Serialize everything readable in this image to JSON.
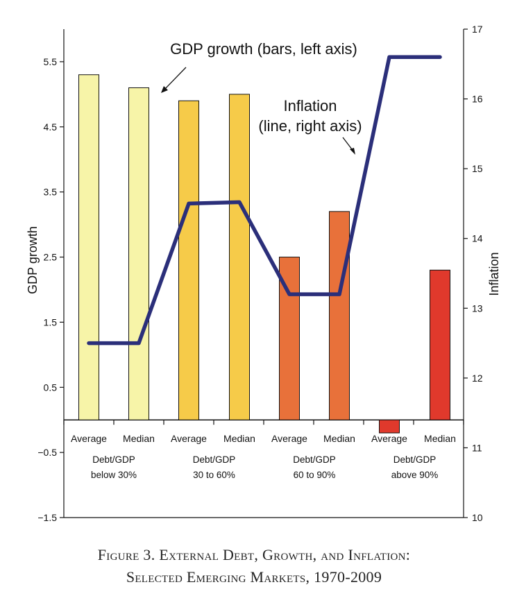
{
  "chart_data": {
    "type": "bar",
    "categories": [
      "Average",
      "Median",
      "Average",
      "Median",
      "Average",
      "Median",
      "Average",
      "Median"
    ],
    "groups": [
      {
        "label": [
          "Debt/GDP",
          "below 30%"
        ],
        "color": "#f7f4a8"
      },
      {
        "label": [
          "Debt/GDP",
          "30 to 60%"
        ],
        "color": "#f6cb49"
      },
      {
        "label": [
          "Debt/GDP",
          "60 to 90%"
        ],
        "color": "#e8713a"
      },
      {
        "label": [
          "Debt/GDP",
          "above 90%"
        ],
        "color": "#e0392c"
      }
    ],
    "series": [
      {
        "name": "GDP growth",
        "kind": "bar",
        "axis": "left",
        "values": [
          5.3,
          5.1,
          4.9,
          5.0,
          2.5,
          3.2,
          -0.2,
          2.3
        ]
      },
      {
        "name": "Inflation",
        "kind": "line",
        "axis": "right",
        "color": "#2b2f7a",
        "values": [
          12.5,
          12.5,
          14.5,
          14.52,
          13.2,
          13.2,
          16.6,
          16.6
        ]
      }
    ],
    "ylabel": "GDP growth",
    "y2label": "Inflation",
    "ylim": [
      -1.5,
      6.0
    ],
    "y2lim": [
      10,
      17
    ],
    "yticks": [
      -1.5,
      -0.5,
      0.5,
      1.5,
      2.5,
      3.5,
      4.5,
      5.5
    ],
    "ytick_labels": [
      "−1.5",
      "−0.5",
      "0.5",
      "1.5",
      "2.5",
      "3.5",
      "4.5",
      "5.5"
    ],
    "y2ticks": [
      10,
      11,
      12,
      13,
      14,
      15,
      16,
      17
    ],
    "annotations": [
      {
        "text": [
          "GDP growth (bars, left axis)"
        ]
      },
      {
        "text": [
          "Inflation",
          "(line, right axis)"
        ]
      }
    ],
    "grid": false
  },
  "caption": {
    "line1": "Figure 3. External Debt, Growth, and Inflation:",
    "line2": "Selected Emerging Markets, 1970-2009"
  }
}
